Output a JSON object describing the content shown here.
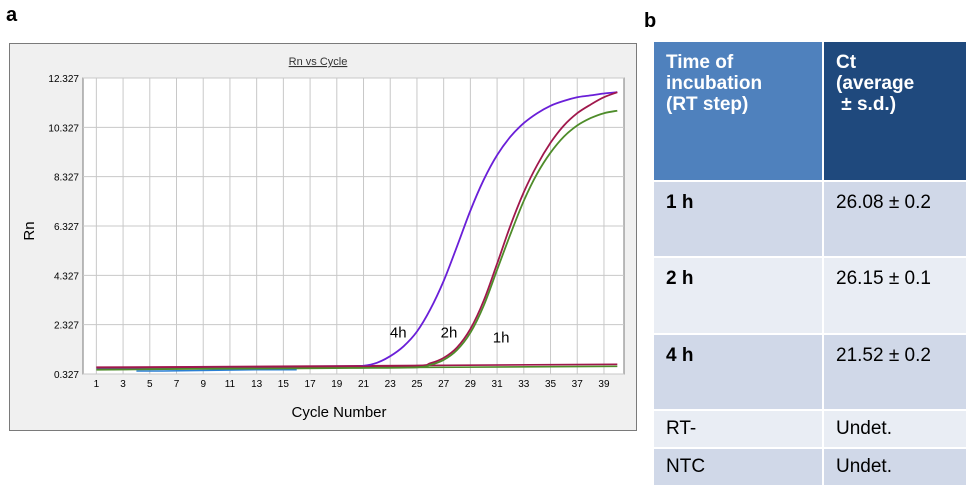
{
  "panels": {
    "a": "a",
    "b": "b"
  },
  "chart_data": {
    "type": "line",
    "title": "Rn vs Cycle",
    "xlabel": "Cycle Number",
    "ylabel": "Rn",
    "xlim": [
      0,
      40.5
    ],
    "ylim": [
      0.327,
      12.327
    ],
    "x_ticks": [
      1,
      3,
      5,
      7,
      9,
      11,
      13,
      15,
      17,
      19,
      21,
      23,
      25,
      27,
      29,
      31,
      33,
      35,
      37,
      39
    ],
    "y_ticks": [
      0.327,
      2.327,
      4.327,
      6.327,
      8.327,
      10.327,
      12.327
    ],
    "y_tick_labels": [
      "0.327",
      "2.327",
      "4.327",
      "6.327",
      "8.327",
      "10.327",
      "12.327"
    ],
    "grid": true,
    "series": [
      {
        "name": "4h",
        "color": "#6a1fd8",
        "x": [
          1,
          5,
          10,
          15,
          20,
          21,
          22,
          23,
          24,
          25,
          26,
          27,
          28,
          29,
          30,
          31,
          32,
          33,
          34,
          35,
          36,
          37,
          38,
          39,
          40
        ],
        "y": [
          0.58,
          0.59,
          0.6,
          0.61,
          0.63,
          0.66,
          0.78,
          1.05,
          1.45,
          2.05,
          2.95,
          4.1,
          5.5,
          6.95,
          8.2,
          9.2,
          9.95,
          10.5,
          10.9,
          11.2,
          11.4,
          11.55,
          11.62,
          11.7,
          11.75
        ]
      },
      {
        "name": "2h",
        "color": "#a0184c",
        "x": [
          1,
          5,
          10,
          15,
          20,
          25,
          26,
          27,
          28,
          29,
          30,
          31,
          32,
          33,
          34,
          35,
          36,
          37,
          38,
          39,
          40
        ],
        "y": [
          0.6,
          0.6,
          0.61,
          0.62,
          0.63,
          0.66,
          0.76,
          0.98,
          1.4,
          2.15,
          3.3,
          4.8,
          6.35,
          7.7,
          8.8,
          9.7,
          10.4,
          10.9,
          11.25,
          11.55,
          11.75
        ]
      },
      {
        "name": "1h",
        "color": "#4e8c2a",
        "x": [
          1,
          5,
          10,
          15,
          20,
          25,
          26,
          27,
          28,
          29,
          30,
          31,
          32,
          33,
          34,
          35,
          36,
          37,
          38,
          39,
          40
        ],
        "y": [
          0.5,
          0.52,
          0.54,
          0.55,
          0.57,
          0.6,
          0.7,
          0.9,
          1.3,
          2.0,
          3.1,
          4.55,
          6.0,
          7.35,
          8.45,
          9.3,
          9.95,
          10.4,
          10.7,
          10.9,
          11.0
        ]
      }
    ],
    "baselines": [
      {
        "name": "",
        "color": "#a0184c",
        "x": [
          1,
          40
        ],
        "y": [
          0.6,
          0.72
        ]
      },
      {
        "name": "",
        "color": "#4e8c2a",
        "x": [
          1,
          40
        ],
        "y": [
          0.52,
          0.64
        ]
      },
      {
        "name": "",
        "color": "#2a7fd4",
        "x": [
          4,
          6,
          13,
          16
        ],
        "y": [
          0.45,
          0.45,
          0.5,
          0.5
        ]
      }
    ],
    "annotations": [
      {
        "text": "4h",
        "x": 23.6,
        "y": 1.8
      },
      {
        "text": "2h",
        "x": 27.4,
        "y": 1.8
      },
      {
        "text": "1h",
        "x": 31.3,
        "y": 1.6
      }
    ]
  },
  "table": {
    "headers": [
      "Time of incubation (RT step)",
      "Ct (average ± s.d.)"
    ],
    "header_lines": [
      [
        "Time of",
        "incubation",
        "(RT step)"
      ],
      [
        "Ct",
        "(average",
        " ± s.d.)"
      ]
    ],
    "rows": [
      {
        "condition": "1 h",
        "ct": "26.08 ± 0.2"
      },
      {
        "condition": "2 h",
        "ct": "26.15 ± 0.1"
      },
      {
        "condition": "4 h",
        "ct": "21.52 ± 0.2"
      },
      {
        "condition": "RT-",
        "ct": "Undet."
      },
      {
        "condition": "NTC",
        "ct": "Undet."
      }
    ]
  },
  "colors": {
    "header_light": "#4f81bd",
    "header_dark": "#1f497d",
    "row_odd": "#d0d8e8",
    "row_even": "#e9edf4"
  }
}
